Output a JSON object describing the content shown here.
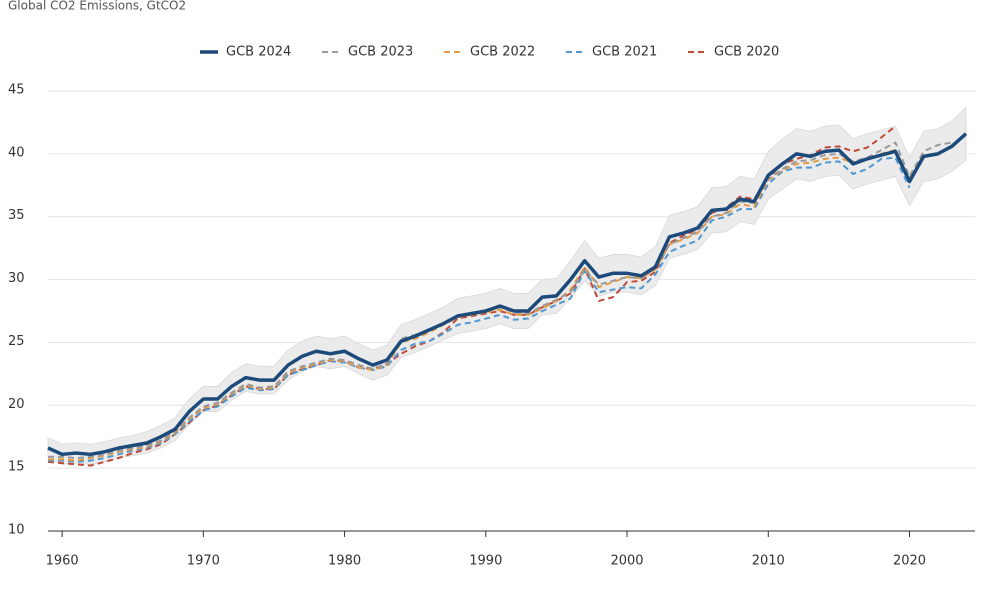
{
  "chart_data": {
    "type": "line",
    "title": "Global CO2 Emissions, GtCO2",
    "x": [
      1959,
      1960,
      1961,
      1962,
      1963,
      1964,
      1965,
      1966,
      1967,
      1968,
      1969,
      1970,
      1971,
      1972,
      1973,
      1974,
      1975,
      1976,
      1977,
      1978,
      1979,
      1980,
      1981,
      1982,
      1983,
      1984,
      1985,
      1986,
      1987,
      1988,
      1989,
      1990,
      1991,
      1992,
      1993,
      1994,
      1995,
      1996,
      1997,
      1998,
      1999,
      2000,
      2001,
      2002,
      2003,
      2004,
      2005,
      2006,
      2007,
      2008,
      2009,
      2010,
      2011,
      2012,
      2013,
      2014,
      2015,
      2016,
      2017,
      2018,
      2019,
      2020,
      2021,
      2022,
      2023,
      2024
    ],
    "xlim": [
      1959,
      2024
    ],
    "xticks": [
      1960,
      1970,
      1980,
      1990,
      2000,
      2010,
      2020
    ],
    "ylim": [
      10,
      45
    ],
    "yticks": [
      10,
      15,
      20,
      25,
      30,
      35,
      40,
      45
    ],
    "grid": true,
    "band": {
      "color": "#ebebeb",
      "lower": [
        15.8,
        15.3,
        15.4,
        15.3,
        15.5,
        15.8,
        16.0,
        16.2,
        16.6,
        17.2,
        18.5,
        19.5,
        19.5,
        20.4,
        21.1,
        20.9,
        20.9,
        22.0,
        22.7,
        23.1,
        22.9,
        23.1,
        22.5,
        22.0,
        22.4,
        23.8,
        24.2,
        24.7,
        25.2,
        25.7,
        25.9,
        26.1,
        26.5,
        26.1,
        26.1,
        27.2,
        27.3,
        28.5,
        29.9,
        28.7,
        29.0,
        29.0,
        28.8,
        29.5,
        31.7,
        32.0,
        32.4,
        33.7,
        33.8,
        34.6,
        34.4,
        36.4,
        37.2,
        38.0,
        37.8,
        38.2,
        38.3,
        37.2,
        37.6,
        37.9,
        38.2,
        35.9,
        37.8,
        38.0,
        38.6,
        39.5
      ],
      "upper": [
        17.4,
        16.9,
        17.0,
        16.9,
        17.1,
        17.4,
        17.6,
        17.9,
        18.4,
        19.0,
        20.5,
        21.5,
        21.5,
        22.6,
        23.3,
        23.1,
        23.1,
        24.4,
        25.1,
        25.5,
        25.3,
        25.5,
        24.9,
        24.4,
        24.8,
        26.4,
        26.8,
        27.3,
        27.8,
        28.5,
        28.7,
        28.9,
        29.3,
        28.9,
        28.9,
        30.0,
        30.1,
        31.5,
        33.1,
        31.7,
        32.0,
        32.0,
        31.8,
        32.6,
        35.1,
        35.4,
        35.8,
        37.3,
        37.4,
        38.2,
        38.0,
        40.2,
        41.2,
        42.0,
        41.8,
        42.2,
        42.3,
        41.2,
        41.6,
        41.9,
        42.2,
        39.7,
        41.8,
        42.0,
        42.6,
        43.7
      ]
    },
    "series": [
      {
        "name": "GCB 2024",
        "color": "#1c4a7a",
        "line_style": "solid",
        "values": [
          16.6,
          16.1,
          16.2,
          16.1,
          16.3,
          16.6,
          16.8,
          17.0,
          17.5,
          18.1,
          19.5,
          20.5,
          20.5,
          21.5,
          22.2,
          22.0,
          22.0,
          23.2,
          23.9,
          24.3,
          24.1,
          24.3,
          23.7,
          23.2,
          23.6,
          25.1,
          25.5,
          26.0,
          26.5,
          27.1,
          27.3,
          27.5,
          27.9,
          27.5,
          27.5,
          28.6,
          28.7,
          30.0,
          31.5,
          30.2,
          30.5,
          30.5,
          30.3,
          31.0,
          33.4,
          33.7,
          34.1,
          35.5,
          35.6,
          36.4,
          36.2,
          38.3,
          39.2,
          40.0,
          39.8,
          40.2,
          40.3,
          39.2,
          39.6,
          39.9,
          40.2,
          37.8,
          39.8,
          40.0,
          40.6,
          41.6
        ]
      },
      {
        "name": "GCB 2023",
        "color": "#9a9a9a",
        "line_style": "dashed",
        "values": [
          15.9,
          15.9,
          15.8,
          15.9,
          16.1,
          16.4,
          16.6,
          16.8,
          17.2,
          17.9,
          19.0,
          19.9,
          20.2,
          21.0,
          21.7,
          21.4,
          21.5,
          22.7,
          23.1,
          23.4,
          23.7,
          23.6,
          23.2,
          22.9,
          23.3,
          25.3,
          25.6,
          26.0,
          26.5,
          27.1,
          27.3,
          27.6,
          27.8,
          27.4,
          27.3,
          27.9,
          28.4,
          29.0,
          30.8,
          29.6,
          29.9,
          30.2,
          30.1,
          30.9,
          32.8,
          33.3,
          33.8,
          35.0,
          35.3,
          36.2,
          36.1,
          38.0,
          38.8,
          39.4,
          39.5,
          39.9,
          40.0,
          39.4,
          39.7,
          40.3,
          40.9,
          38.2,
          40.2,
          40.7,
          40.9,
          null
        ]
      },
      {
        "name": "GCB 2022",
        "color": "#e39a43",
        "line_style": "dashed",
        "values": [
          15.7,
          15.7,
          15.6,
          15.8,
          16.0,
          16.3,
          16.5,
          16.7,
          17.1,
          17.8,
          18.9,
          19.8,
          20.1,
          20.9,
          21.6,
          21.3,
          21.4,
          22.6,
          23.0,
          23.3,
          23.6,
          23.5,
          23.0,
          22.8,
          23.2,
          25.0,
          25.3,
          25.8,
          26.4,
          27.0,
          27.2,
          27.4,
          27.6,
          27.2,
          27.2,
          27.7,
          28.3,
          29.2,
          31.0,
          29.4,
          29.8,
          30.2,
          30.1,
          30.8,
          32.8,
          33.2,
          33.7,
          35.0,
          35.2,
          36.0,
          35.8,
          37.9,
          38.7,
          39.2,
          39.3,
          39.6,
          39.7,
          39.3,
          39.6,
          40.0,
          40.3,
          38.0,
          40.1,
          null,
          null,
          null
        ]
      },
      {
        "name": "GCB 2021",
        "color": "#4f97d1",
        "line_style": "dashed",
        "values": [
          15.6,
          15.6,
          15.5,
          15.6,
          15.8,
          16.1,
          16.4,
          16.6,
          17.0,
          17.7,
          18.7,
          19.6,
          19.9,
          20.7,
          21.4,
          21.2,
          21.3,
          22.4,
          22.8,
          23.2,
          23.5,
          23.4,
          23.0,
          22.8,
          23.1,
          24.4,
          24.9,
          25.1,
          25.7,
          26.4,
          26.6,
          26.9,
          27.2,
          26.8,
          26.9,
          27.5,
          28.0,
          28.5,
          30.7,
          29.0,
          29.2,
          29.4,
          29.3,
          30.4,
          32.2,
          32.7,
          33.1,
          34.7,
          35.0,
          35.6,
          35.6,
          37.6,
          38.6,
          38.9,
          38.9,
          39.3,
          39.4,
          38.4,
          38.8,
          39.6,
          39.7,
          37.3,
          null,
          null,
          null,
          null
        ]
      },
      {
        "name": "GCB 2020",
        "color": "#c04a36",
        "line_style": "dashed",
        "values": [
          15.5,
          15.4,
          15.3,
          15.2,
          15.5,
          15.8,
          16.2,
          16.5,
          16.9,
          17.7,
          18.6,
          19.6,
          20.0,
          20.8,
          21.5,
          21.3,
          21.3,
          22.4,
          22.9,
          23.2,
          23.6,
          23.5,
          23.0,
          22.9,
          23.3,
          24.1,
          24.7,
          25.1,
          25.8,
          26.9,
          27.1,
          27.3,
          27.5,
          27.2,
          27.2,
          27.8,
          28.3,
          28.9,
          30.9,
          28.3,
          28.6,
          29.8,
          29.9,
          30.6,
          32.9,
          33.5,
          34.0,
          35.3,
          35.7,
          36.6,
          36.4,
          38.1,
          39.2,
          39.6,
          39.9,
          40.5,
          40.6,
          40.2,
          40.5,
          41.3,
          42.2,
          null,
          null,
          null,
          null,
          null
        ]
      }
    ]
  }
}
